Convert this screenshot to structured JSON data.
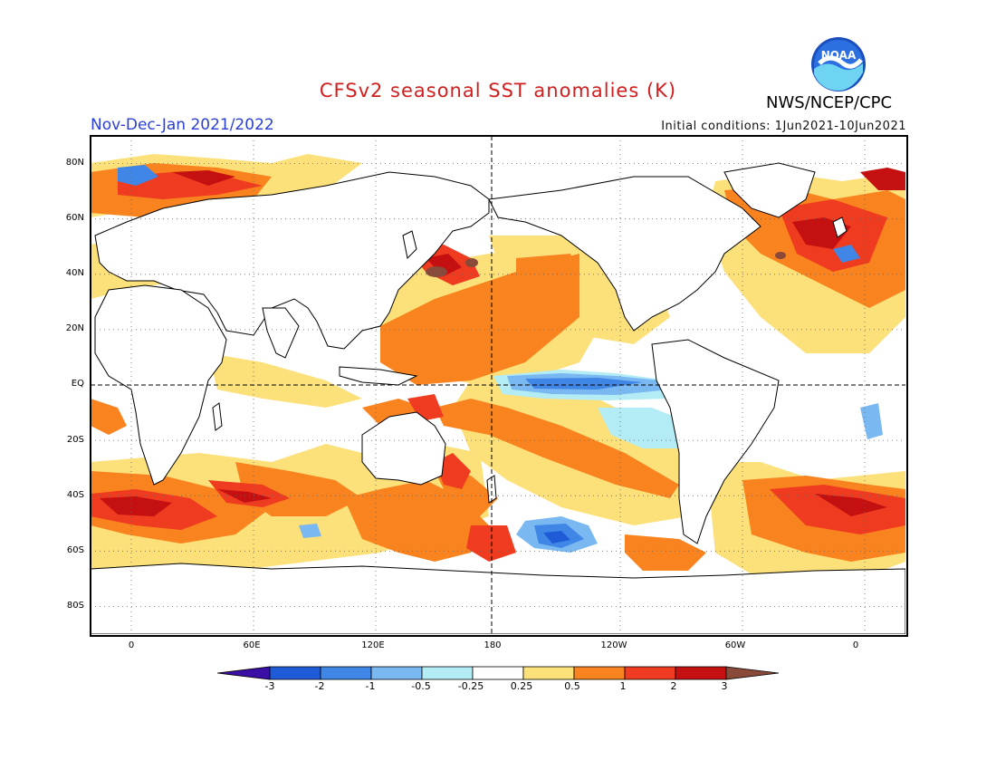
{
  "header": {
    "title": "CFSv2 seasonal SST anomalies (K)",
    "org": "NWS/NCEP/CPC",
    "period": "Nov-Dec-Jan 2021/2022",
    "initial_conditions": "Initial conditions: 1Jun2021-10Jun2021",
    "logo_text": "NOAA"
  },
  "map": {
    "projection": "equirectangular",
    "lon_range": [
      -20,
      380
    ],
    "lat_range": [
      -90,
      90
    ],
    "grid": "dotted",
    "lat_labels": [
      "80N",
      "60N",
      "40N",
      "20N",
      "EQ",
      "20S",
      "40S",
      "60S",
      "80S"
    ],
    "lon_labels": [
      "0",
      "60E",
      "120E",
      "180",
      "120W",
      "60W",
      "0"
    ],
    "colors": {
      "c_neg3": "#3b0fa5",
      "c_neg2": "#1f5bd6",
      "c_neg1": "#3f86e6",
      "c_neg05": "#7ab8f2",
      "c_neg025": "#b4ecf6",
      "c_zero": "#ffffff",
      "c_pos025": "#fce07a",
      "c_pos05": "#f9831e",
      "c_pos1": "#ef3b20",
      "c_pos2": "#c41010",
      "c_pos3": "#8a4a3a"
    }
  },
  "colorbar": {
    "labels": [
      "-3",
      "-2",
      "-1",
      "-0.5",
      "-0.25",
      "0.25",
      "0.5",
      "1",
      "2",
      "3"
    ],
    "colors": [
      "#3b0fa5",
      "#1f5bd6",
      "#3f86e6",
      "#7ab8f2",
      "#b4ecf6",
      "#ffffff",
      "#fce07a",
      "#f9831e",
      "#ef3b20",
      "#c41010",
      "#8a4a3a"
    ]
  }
}
